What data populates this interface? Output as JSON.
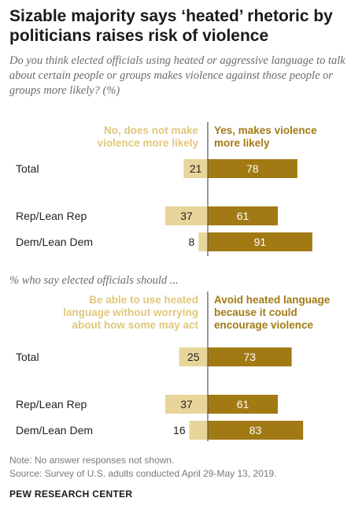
{
  "title": "Sizable majority says ‘heated’ rhetoric by politicians raises risk of violence",
  "subtitle": "Do you think elected officials using heated or aggressive language to talk about certain people or groups makes violence against those people or groups more likely? (%)",
  "colors": {
    "left_bar": "#e8d59a",
    "right_bar": "#a27a14",
    "left_text": "#e2c77a",
    "right_text": "#a27a14",
    "axis": "#555555"
  },
  "chart_data": [
    {
      "type": "bar",
      "orientation": "diverging-horizontal",
      "question": "",
      "legend_left": "No, does not make violence more likely",
      "legend_right": "Yes, makes violence more likely",
      "categories": [
        "Total",
        "Rep/Lean Rep",
        "Dem/Lean Dem"
      ],
      "series": [
        {
          "name": "No, does not make violence more likely",
          "values": [
            21,
            37,
            8
          ]
        },
        {
          "name": "Yes, makes violence more likely",
          "values": [
            78,
            61,
            91
          ]
        }
      ]
    },
    {
      "type": "bar",
      "orientation": "diverging-horizontal",
      "question": "% who say elected officials should ...",
      "legend_left": "Be able to use heated language without worrying about how some may act",
      "legend_right": "Avoid heated language because it could encourage violence",
      "categories": [
        "Total",
        "Rep/Lean Rep",
        "Dem/Lean Dem"
      ],
      "series": [
        {
          "name": "Be able to use heated language without worrying about how some may act",
          "values": [
            25,
            37,
            16
          ]
        },
        {
          "name": "Avoid heated language because it could encourage violence",
          "values": [
            73,
            61,
            83
          ]
        }
      ]
    }
  ],
  "legend_lines": {
    "c1_left": [
      "No, does not make",
      "violence more likely"
    ],
    "c1_right": [
      "Yes, makes violence",
      "more likely"
    ],
    "c2_left": [
      "Be able to use heated",
      "language without worrying",
      "about how some may act"
    ],
    "c2_right": [
      "Avoid heated language",
      "because it could",
      "encourage violence"
    ]
  },
  "note": "Note: No answer responses not shown.",
  "source": "Source: Survey of U.S. adults conducted April 29-May 13, 2019.",
  "brand": "PEW RESEARCH CENTER"
}
